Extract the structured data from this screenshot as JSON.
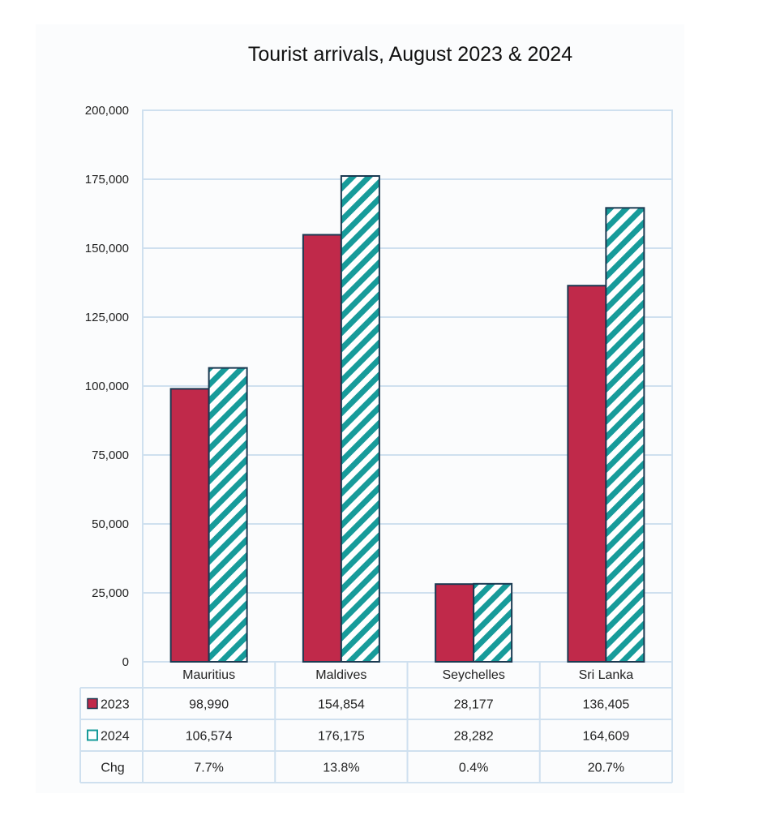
{
  "chart_data": {
    "type": "bar",
    "title": "Tourist arrivals, August 2023 & 2024",
    "categories": [
      "Mauritius",
      "Maldives",
      "Seychelles",
      "Sri Lanka"
    ],
    "series": [
      {
        "name": "2023",
        "values": [
          98990,
          154854,
          28177,
          136405
        ],
        "labels": [
          "98,990",
          "154,854",
          "28,177",
          "136,405"
        ],
        "color": "#c0294a",
        "pattern": "solid"
      },
      {
        "name": "2024",
        "values": [
          106574,
          176175,
          28282,
          164609
        ],
        "labels": [
          "106,574",
          "176,175",
          "28,282",
          "164,609"
        ],
        "color": "#179b9a",
        "pattern": "diagonal-stripes"
      }
    ],
    "change_row": {
      "label": "Chg",
      "values": [
        "7.7%",
        "13.8%",
        "0.4%",
        "20.7%"
      ]
    },
    "ylim": [
      0,
      200000
    ],
    "yticks": [
      0,
      25000,
      50000,
      75000,
      100000,
      125000,
      150000,
      175000,
      200000
    ],
    "ytick_labels": [
      "0",
      "25,000",
      "50,000",
      "75,000",
      "100,000",
      "125,000",
      "150,000",
      "175,000",
      "200,000"
    ],
    "grid": "horizontal",
    "legend": "data-table",
    "xlabel": "",
    "ylabel": "",
    "colors": {
      "bar_2023": "#c0294a",
      "bar_2024_stripe": "#179b9a",
      "bar_outline": "#1b3a52",
      "grid": "#cfe0ef"
    }
  }
}
